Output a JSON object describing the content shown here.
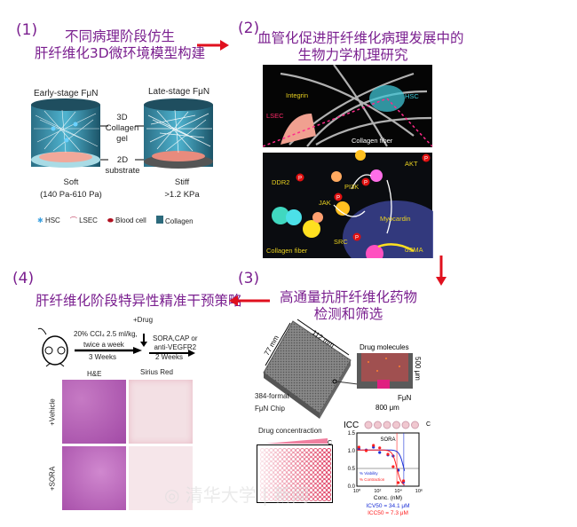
{
  "panel1": {
    "number": "(1)",
    "title_line1": "不同病理阶段仿生",
    "title_line2": "肝纤维化3D微环境模型构建",
    "early_label": "Early-stage FμN",
    "late_label": "Late-stage FμN",
    "gel_label": [
      "3D",
      "Collagen",
      "gel"
    ],
    "substrate_label": [
      "2D",
      "substrate"
    ],
    "soft_label": "Soft",
    "soft_range": "(140 Pa-610 Pa)",
    "stiff_label": "Stiff",
    "stiff_value": ">1.2 KPa",
    "legend": [
      "HSC",
      "LSEC",
      "Blood cell",
      "Collagen"
    ]
  },
  "panel2": {
    "number": "(2)",
    "title_line1": "血管化促进肝纤维化病理发展中的",
    "title_line2": "生物力学机理研究",
    "top_labels": {
      "integrin": "Integrin",
      "hsc": "HSC",
      "lsec": "LSEC",
      "collagen_fiber": "Collagen fiber"
    },
    "bottom_labels": {
      "ddr2": "DDR2",
      "jak": "JAK",
      "pi3k": "PI3K",
      "akt": "AKT",
      "src": "SRC",
      "myocardin": "Myocardin",
      "asma": "αSMA",
      "collagen_fiber": "Collagen fiber",
      "p": "P"
    }
  },
  "panel3": {
    "number": "(3)",
    "title_line1": "高通量抗肝纤维化药物",
    "title_line2": "检测和筛选",
    "chip_width": "77 mm",
    "chip_length": "112 mm",
    "chip_label_line1": "384-format",
    "chip_label_line2": "FμN Chip",
    "drug_molecules": "Drug molecules",
    "height_500": "500 μm",
    "fun_label": "FμN",
    "width_800": "800 μm",
    "drug_concentration": "Drug concentraction",
    "c_label": "C"
  },
  "panel4": {
    "number": "(4)",
    "title": "肝纤维化阶段特异性精准干预策略",
    "ccl4": "20% CCl₄ 2.5 ml/kg,",
    "twice": "twice a week",
    "weeks3": "3 Weeks",
    "drug": "+Drug",
    "drugs_line1": "SORA,CAP or",
    "drugs_line2": "anti-VEGFR2",
    "weeks2": "2 Weeks",
    "col_he": "H&E",
    "col_sirius": "Sirius Red",
    "row_vehicle": "+Vehicle",
    "row_sora": "+SORA"
  },
  "colors": {
    "title": "#7a1f8f",
    "arrow": "#e0101e",
    "viability": "#1a2fd6",
    "contraction": "#ff2020"
  },
  "chart_data": {
    "type": "scatter",
    "title": "ICC",
    "subtitle": "SORA",
    "xlabel": "Conc. (nM)",
    "x_scale": "log",
    "xlim": [
      1,
      1000000
    ],
    "x_ticks": [
      "10⁰",
      "10²",
      "10⁴",
      "10⁶"
    ],
    "ylim": [
      0,
      1.5
    ],
    "y_ticks": [
      "0.0",
      "0.5",
      "1.0",
      "1.5"
    ],
    "c_label": "C",
    "series": [
      {
        "name": "% Viability",
        "color": "#1a2fd6",
        "x": [
          1.6,
          8,
          40,
          160,
          1000,
          3200,
          10000,
          32000
        ],
        "y": [
          1.05,
          1.02,
          1.1,
          0.95,
          0.88,
          0.85,
          0.45,
          0.12
        ]
      },
      {
        "name": "% Contraction",
        "color": "#ff2020",
        "x": [
          1.6,
          8,
          40,
          160,
          1000,
          3200,
          10000,
          32000
        ],
        "y": [
          1.1,
          1.0,
          1.15,
          1.08,
          0.9,
          0.55,
          0.1,
          0.15
        ]
      }
    ],
    "annotations": {
      "icv50": "ICV50 =  34.1 μM",
      "icc50": "ICC50 =  7.3 μM"
    },
    "reference_lines": {
      "y": 0.5,
      "x_contraction": 7300,
      "x_viability": 34100
    }
  }
}
